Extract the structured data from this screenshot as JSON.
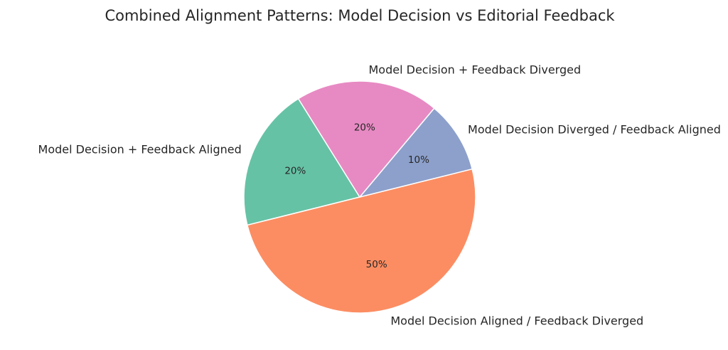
{
  "chart_data": {
    "type": "pie",
    "title": "Combined Alignment Patterns: Model Decision vs Editorial Feedback",
    "slices": [
      {
        "label": "Model Decision + Feedback Aligned",
        "value": 20,
        "pct_label": "20%",
        "color": "#66c2a5"
      },
      {
        "label": "Model Decision Aligned / Feedback Diverged",
        "value": 50,
        "pct_label": "50%",
        "color": "#fc8d62"
      },
      {
        "label": "Model Decision Diverged / Feedback Aligned",
        "value": 10,
        "pct_label": "10%",
        "color": "#8da0cb"
      },
      {
        "label": "Model Decision + Feedback Diverged",
        "value": 20,
        "pct_label": "20%",
        "color": "#e78ac3"
      }
    ],
    "legend": "none"
  }
}
